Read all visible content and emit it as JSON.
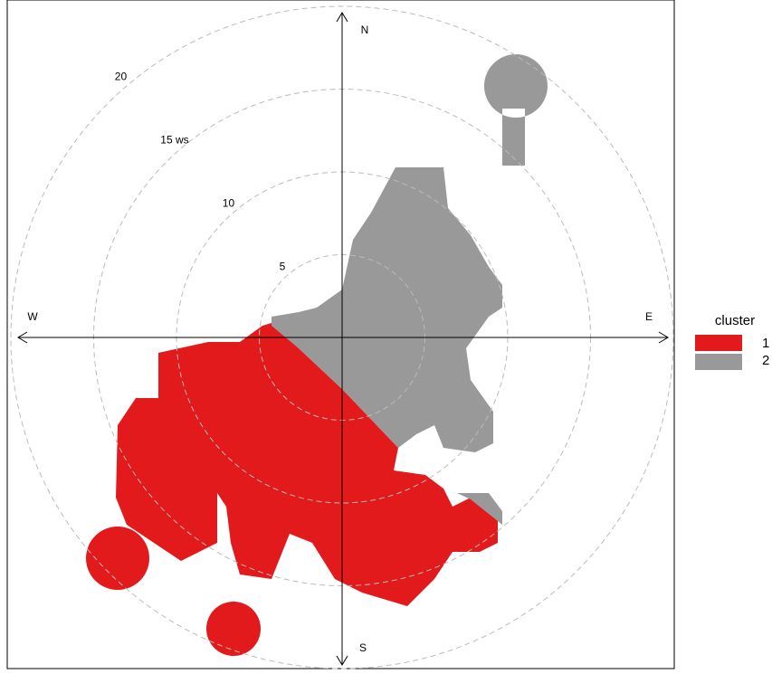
{
  "chart_data": {
    "type": "polar-cluster",
    "ylim": [
      0,
      20
    ],
    "yticks": [
      5,
      10,
      {
        "value": 15,
        "label": "15 ws"
      },
      20
    ],
    "grid": true,
    "directions": [
      "N",
      "E",
      "S",
      "W"
    ],
    "legend_title": "cluster",
    "legend_position": "right",
    "series": [
      {
        "name": "1",
        "color": "#e31a1c"
      },
      {
        "name": "2",
        "color": "#999999"
      }
    ]
  }
}
